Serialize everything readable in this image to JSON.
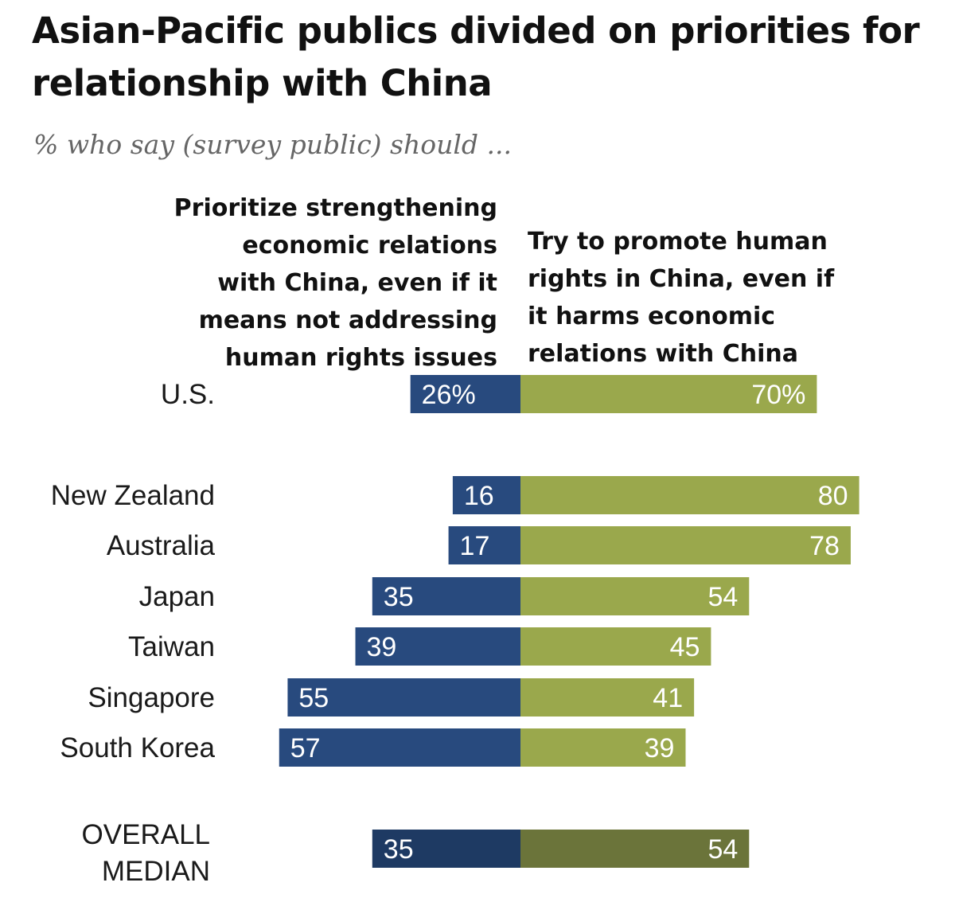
{
  "title": "Asian-Pacific publics divided on priorities for relationship with China",
  "subtitle": "% who say (survey public) should ...",
  "colors": {
    "left": "#284a7e",
    "right": "#9aa84c",
    "left_median": "#1e3a63",
    "right_median": "#6b743a"
  },
  "chart_data": {
    "type": "bar",
    "orientation": "horizontal-diverging",
    "title": "Asian-Pacific publics divided on priorities for relationship with China",
    "subtitle": "% who say (survey public) should ...",
    "series": [
      {
        "name": "Prioritize strengthening economic relations with China, even if it means not addressing human rights issues"
      },
      {
        "name": "Try to promote human rights in China, even if it harms economic relations with China"
      }
    ],
    "rows": [
      {
        "category": "U.S.",
        "left": 26,
        "right": 70,
        "left_label": "26%",
        "right_label": "70%",
        "group": "us"
      },
      {
        "category": "New Zealand",
        "left": 16,
        "right": 80,
        "left_label": "16",
        "right_label": "80",
        "group": "countries"
      },
      {
        "category": "Australia",
        "left": 17,
        "right": 78,
        "left_label": "17",
        "right_label": "78",
        "group": "countries"
      },
      {
        "category": "Japan",
        "left": 35,
        "right": 54,
        "left_label": "35",
        "right_label": "54",
        "group": "countries"
      },
      {
        "category": "Taiwan",
        "left": 39,
        "right": 45,
        "left_label": "39",
        "right_label": "45",
        "group": "countries"
      },
      {
        "category": "Singapore",
        "left": 55,
        "right": 41,
        "left_label": "55",
        "right_label": "41",
        "group": "countries"
      },
      {
        "category": "South Korea",
        "left": 57,
        "right": 39,
        "left_label": "57",
        "right_label": "39",
        "group": "countries"
      },
      {
        "category": "OVERALL MEDIAN",
        "category_lines": [
          "OVERALL",
          "MEDIAN"
        ],
        "left": 35,
        "right": 54,
        "left_label": "35",
        "right_label": "54",
        "group": "median"
      }
    ],
    "xlim": [
      -57,
      80
    ]
  },
  "column_headers": {
    "left": "Prioritize strengthening\neconomic relations\nwith China, even if it\nmeans not addressing\nhuman rights issues",
    "right": "Try to promote human\nrights in China, even if\nit harms economic\nrelations with China"
  }
}
